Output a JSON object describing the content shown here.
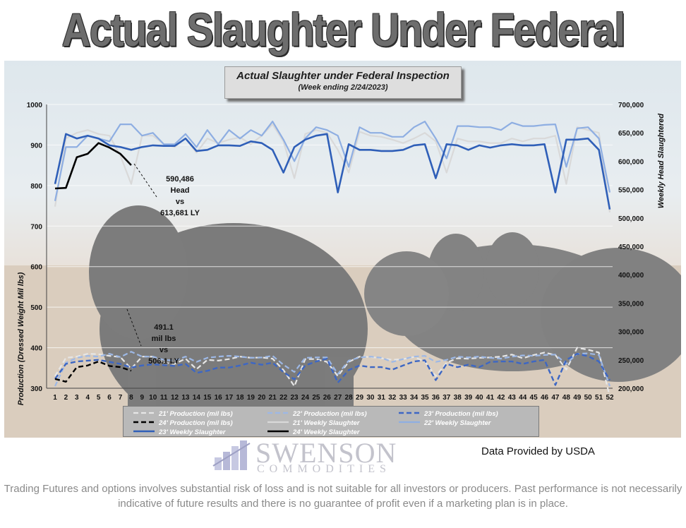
{
  "banner_title": "Actual Slaughter Under Federal Inspection",
  "chart_title": "Actual Slaughter under Federal Inspection",
  "chart_subtitle": "(Week ending 2/24/2023)",
  "data_source": "Data Provided by USDA",
  "logo": {
    "word1": "SWENSON",
    "word2": "COMMODITIES"
  },
  "disclaimer": "Trading Futures and options involves substantial risk of loss and is not suitable for all investors or producers. Past performance is not necessarily indicative of future results and there is no guarantee of profit even if a marketing plan is in place.",
  "annotations": {
    "head": [
      "590,486",
      "Head",
      "vs",
      "613,681 LY"
    ],
    "production": [
      "491.1",
      "mil lbs",
      "vs",
      "506.1 LY"
    ]
  },
  "chart_data": {
    "type": "line",
    "y_left": {
      "label": "Production (Dressed Weight Mil lbs)",
      "min": 300,
      "max": 1000,
      "ticks": [
        "300",
        "400",
        "500",
        "600",
        "700",
        "800",
        "900",
        "1000"
      ]
    },
    "y_right": {
      "label": "Weekly Head Slaughtered",
      "min": 200000,
      "max": 700000,
      "ticks": [
        "200,000",
        "250,000",
        "300,000",
        "350,000",
        "400,000",
        "450,000",
        "500,000",
        "550,000",
        "600,000",
        "650,000",
        "700,000"
      ]
    },
    "x": {
      "min": 1,
      "max": 52,
      "ticks": [
        "1",
        "2",
        "3",
        "4",
        "5",
        "6",
        "7",
        "8",
        "9",
        "10",
        "11",
        "12",
        "13",
        "14",
        "15",
        "16",
        "17",
        "18",
        "19",
        "20",
        "21",
        "22",
        "23",
        "24",
        "25",
        "26",
        "27",
        "28",
        "29",
        "30",
        "31",
        "32",
        "33",
        "34",
        "35",
        "36",
        "37",
        "38",
        "39",
        "40",
        "41",
        "42",
        "43",
        "44",
        "45",
        "46",
        "47",
        "48",
        "49",
        "50",
        "51",
        "52"
      ]
    },
    "grid": true,
    "legend_placement": "bottom",
    "series": [
      {
        "name": "21' Production (mil lbs)",
        "axis": "left",
        "color": "#e6e6e6",
        "dash": true,
        "width": 2.2,
        "values": [
          330,
          375,
          378,
          385,
          384,
          380,
          377,
          348,
          378,
          378,
          363,
          360,
          373,
          347,
          370,
          368,
          372,
          378,
          375,
          376,
          373,
          345,
          305,
          372,
          372,
          365,
          330,
          365,
          378,
          377,
          374,
          370,
          372,
          377,
          366,
          330,
          363,
          374,
          373,
          375,
          376,
          378,
          383,
          374,
          382,
          388,
          382,
          346,
          400,
          395,
          388,
          280
        ]
      },
      {
        "name": "22' Production (mil lbs)",
        "axis": "left",
        "color": "#9db8e6",
        "dash": true,
        "width": 2.2,
        "values": [
          305,
          363,
          375,
          380,
          378,
          385,
          377,
          390,
          378,
          378,
          370,
          368,
          378,
          365,
          375,
          378,
          380,
          378,
          375,
          376,
          380,
          358,
          340,
          375,
          376,
          376,
          335,
          368,
          376,
          378,
          375,
          365,
          372,
          378,
          380,
          365,
          370,
          378,
          376,
          378,
          375,
          373,
          378,
          381,
          380,
          382,
          383,
          360,
          385,
          386,
          382,
          305
        ]
      },
      {
        "name": "23' Production (mil lbs)",
        "axis": "left",
        "color": "#3d67c4",
        "dash": true,
        "width": 2.4,
        "values": [
          323,
          360,
          366,
          368,
          370,
          365,
          360,
          351,
          356,
          359,
          357,
          355,
          360,
          338,
          343,
          351,
          351,
          356,
          363,
          358,
          363,
          340,
          322,
          356,
          366,
          373,
          314,
          345,
          356,
          352,
          352,
          346,
          356,
          366,
          369,
          320,
          360,
          352,
          358,
          352,
          365,
          366,
          366,
          360,
          366,
          370,
          308,
          370,
          385,
          379,
          366,
          320
        ]
      },
      {
        "name": "24' Production (mil lbs)",
        "axis": "left",
        "color": "#000000",
        "dash": true,
        "width": 2.4,
        "values": [
          323,
          316,
          352,
          356,
          366,
          355,
          352,
          343
        ]
      },
      {
        "name": "21' Weekly Slaughter",
        "axis": "right",
        "color": "#d9d9d9",
        "dash": false,
        "width": 2.2,
        "values": [
          520,
          640,
          650,
          655,
          648,
          645,
          610,
          560,
          645,
          645,
          630,
          625,
          640,
          615,
          640,
          632,
          638,
          642,
          630,
          645,
          665,
          635,
          570,
          648,
          655,
          650,
          620,
          580,
          652,
          645,
          643,
          638,
          632,
          640,
          650,
          635,
          580,
          640,
          635,
          635,
          632,
          632,
          640,
          635,
          640,
          640,
          645,
          560,
          660,
          655,
          650,
          510
        ]
      },
      {
        "name": "22' Weekly Slaughter",
        "axis": "right",
        "color": "#8eaee2",
        "dash": false,
        "width": 2.2,
        "values": [
          530,
          625,
          625,
          645,
          640,
          635,
          665,
          665,
          645,
          650,
          630,
          630,
          648,
          625,
          655,
          630,
          655,
          640,
          655,
          645,
          670,
          638,
          600,
          640,
          660,
          655,
          645,
          590,
          660,
          650,
          650,
          643,
          643,
          660,
          670,
          640,
          605,
          662,
          662,
          660,
          660,
          655,
          668,
          662,
          662,
          664,
          665,
          590,
          658,
          660,
          640,
          545
        ]
      },
      {
        "name": "23' Weekly Slaughter",
        "axis": "right",
        "color": "#2f5fb8",
        "dash": false,
        "width": 2.6,
        "values": [
          560,
          648,
          640,
          645,
          640,
          628,
          625,
          620,
          625,
          628,
          627,
          627,
          640,
          618,
          620,
          628,
          628,
          627,
          635,
          632,
          620,
          580,
          625,
          638,
          645,
          648,
          545,
          630,
          620,
          620,
          618,
          618,
          620,
          628,
          630,
          570,
          630,
          628,
          620,
          628,
          624,
          628,
          630,
          628,
          628,
          630,
          545,
          638,
          638,
          640,
          620,
          515
        ]
      },
      {
        "name": "24' Weekly Slaughter",
        "axis": "right",
        "color": "#000000",
        "dash": false,
        "width": 2.6,
        "values": [
          552,
          553,
          607,
          613,
          632,
          624,
          613,
          593
        ]
      }
    ]
  }
}
